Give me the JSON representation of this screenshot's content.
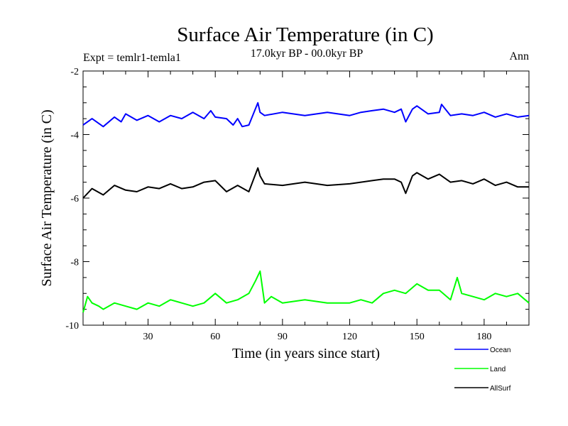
{
  "chart_data": {
    "type": "line",
    "title": "Surface Air Temperature (in C)",
    "subtitle": "17.0kyr BP - 00.0kyr BP",
    "left_label": "Expt = temlr1-temla1",
    "right_label": "Ann",
    "xlabel": "Time (in years since start)",
    "ylabel": "Surface Air Temperature (in C)",
    "xlim": [
      1,
      200
    ],
    "ylim": [
      -10,
      -2
    ],
    "xticks": [
      30,
      60,
      90,
      120,
      150,
      180
    ],
    "xtick_labels": [
      "30",
      "60",
      "90",
      "120",
      "150",
      "180"
    ],
    "yticks": [
      -10,
      -8,
      -6,
      -4,
      -2
    ],
    "ytick_labels": [
      "-10",
      "-8",
      "-6",
      "-4",
      "-2"
    ],
    "grid": false,
    "legend_position": "bottom-right",
    "series": [
      {
        "name": "Ocean",
        "color": "#0000ff",
        "x": [
          1,
          5,
          10,
          15,
          18,
          20,
          25,
          30,
          35,
          40,
          45,
          50,
          55,
          58,
          60,
          65,
          68,
          70,
          72,
          75,
          79,
          80,
          82,
          90,
          100,
          110,
          120,
          125,
          130,
          135,
          140,
          143,
          145,
          148,
          150,
          155,
          160,
          161,
          165,
          170,
          175,
          180,
          185,
          190,
          195,
          200
        ],
        "values": [
          -3.7,
          -3.5,
          -3.75,
          -3.45,
          -3.6,
          -3.35,
          -3.55,
          -3.4,
          -3.6,
          -3.4,
          -3.5,
          -3.3,
          -3.5,
          -3.25,
          -3.45,
          -3.5,
          -3.7,
          -3.5,
          -3.75,
          -3.7,
          -3.0,
          -3.3,
          -3.4,
          -3.3,
          -3.4,
          -3.3,
          -3.4,
          -3.3,
          -3.25,
          -3.2,
          -3.3,
          -3.2,
          -3.6,
          -3.2,
          -3.1,
          -3.35,
          -3.3,
          -3.05,
          -3.4,
          -3.35,
          -3.4,
          -3.3,
          -3.45,
          -3.35,
          -3.45,
          -3.4
        ]
      },
      {
        "name": "Land",
        "color": "#00ff00",
        "x": [
          1,
          3,
          5,
          8,
          10,
          15,
          20,
          25,
          30,
          35,
          40,
          45,
          50,
          55,
          60,
          65,
          70,
          75,
          78,
          80,
          82,
          85,
          90,
          100,
          110,
          120,
          125,
          130,
          135,
          140,
          145,
          150,
          155,
          160,
          165,
          168,
          170,
          175,
          180,
          185,
          190,
          195,
          200
        ],
        "values": [
          -9.6,
          -9.1,
          -9.3,
          -9.4,
          -9.5,
          -9.3,
          -9.4,
          -9.5,
          -9.3,
          -9.4,
          -9.2,
          -9.3,
          -9.4,
          -9.3,
          -9.0,
          -9.3,
          -9.2,
          -9.0,
          -8.6,
          -8.3,
          -9.3,
          -9.1,
          -9.3,
          -9.2,
          -9.3,
          -9.3,
          -9.2,
          -9.3,
          -9.0,
          -8.9,
          -9.0,
          -8.7,
          -8.9,
          -8.9,
          -9.2,
          -8.5,
          -9.0,
          -9.1,
          -9.2,
          -9.0,
          -9.1,
          -9.0,
          -9.3
        ]
      },
      {
        "name": "AllSurf",
        "color": "#000000",
        "x": [
          1,
          5,
          10,
          15,
          20,
          25,
          30,
          35,
          40,
          45,
          50,
          55,
          60,
          65,
          70,
          75,
          79,
          80,
          82,
          90,
          100,
          110,
          120,
          125,
          130,
          135,
          140,
          143,
          145,
          148,
          150,
          155,
          160,
          165,
          170,
          175,
          180,
          185,
          190,
          195,
          200
        ],
        "values": [
          -6.0,
          -5.7,
          -5.9,
          -5.6,
          -5.75,
          -5.8,
          -5.65,
          -5.7,
          -5.55,
          -5.7,
          -5.65,
          -5.5,
          -5.45,
          -5.8,
          -5.6,
          -5.8,
          -5.05,
          -5.3,
          -5.55,
          -5.6,
          -5.5,
          -5.6,
          -5.55,
          -5.5,
          -5.45,
          -5.4,
          -5.4,
          -5.5,
          -5.85,
          -5.3,
          -5.2,
          -5.4,
          -5.25,
          -5.5,
          -5.45,
          -5.55,
          -5.4,
          -5.6,
          -5.5,
          -5.65,
          -5.65
        ]
      }
    ]
  }
}
